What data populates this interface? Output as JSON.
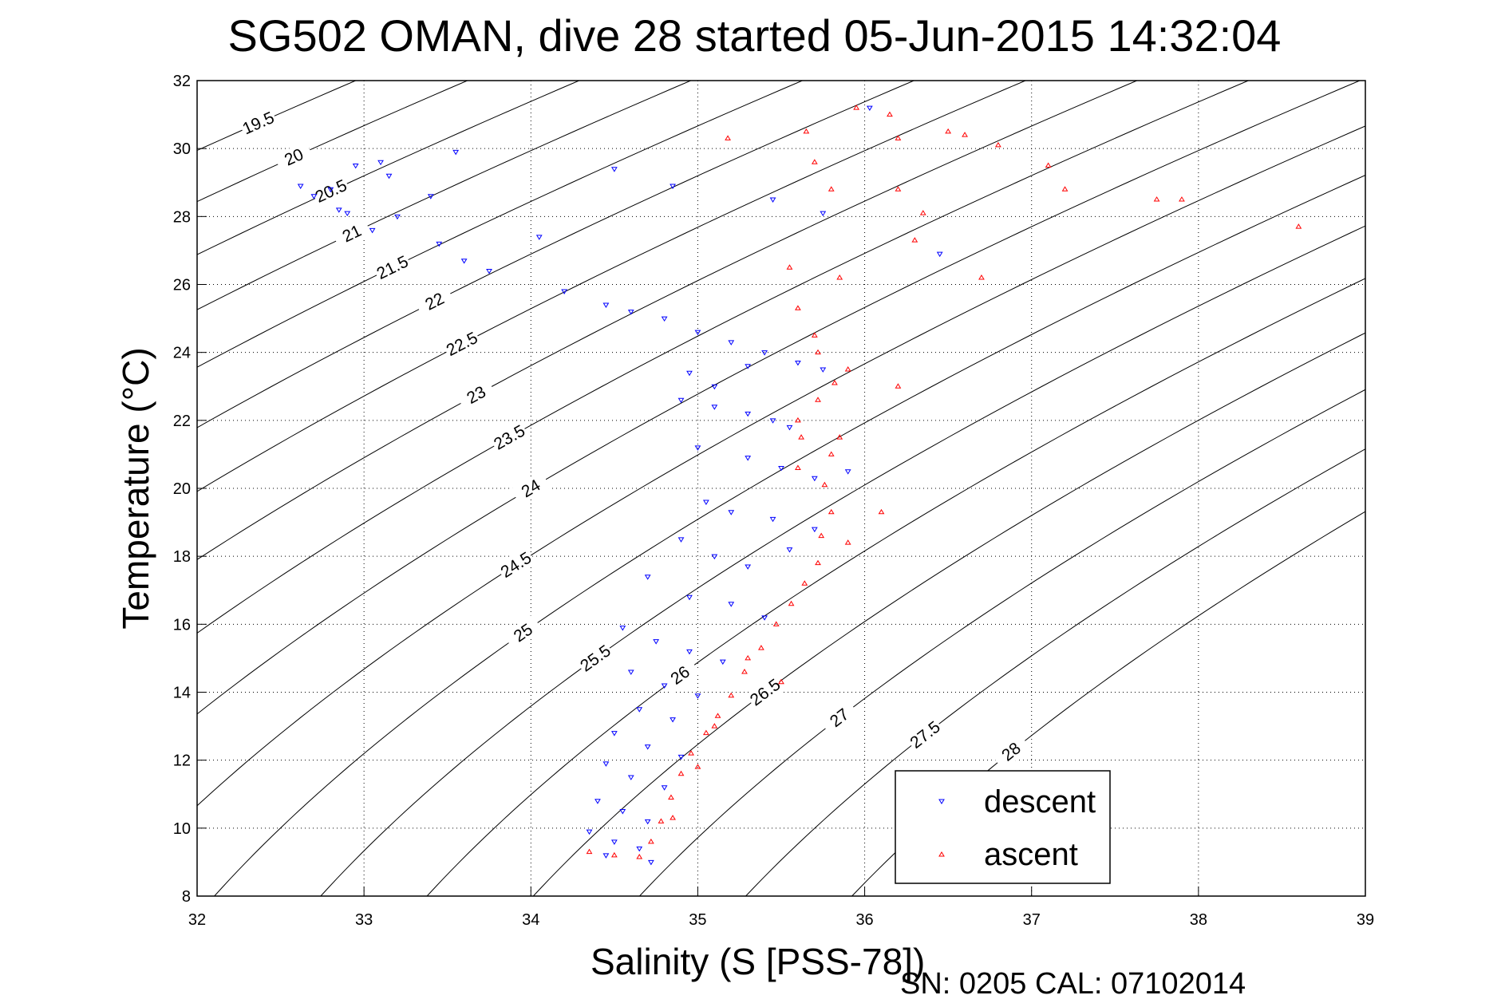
{
  "chart_data": {
    "type": "scatter",
    "title": "SG502 OMAN, dive 28 started 05-Jun-2015 14:32:04",
    "xlabel": "Salinity (S [PSS-78])",
    "ylabel": "Temperature (°C)",
    "footer": "SN: 0205  CAL: 07102014",
    "xlim": [
      32,
      39
    ],
    "ylim": [
      8,
      32
    ],
    "xticks": [
      "32",
      "33",
      "34",
      "35",
      "36",
      "37",
      "38",
      "39"
    ],
    "yticks": [
      "8",
      "10",
      "12",
      "14",
      "16",
      "18",
      "20",
      "22",
      "24",
      "26",
      "28",
      "30",
      "32"
    ],
    "grid": true,
    "legend": {
      "placement": "bottom-right",
      "entries": [
        "descent",
        "ascent"
      ]
    },
    "density_contours": [
      "19.5",
      "20",
      "20.5",
      "21",
      "21.5",
      "22",
      "22.5",
      "23",
      "23.5",
      "24",
      "24.5",
      "25",
      "25.5",
      "26",
      "26.5",
      "27",
      "27.5",
      "28"
    ],
    "colors": {
      "descent": "#0000ff",
      "ascent": "#ff0000",
      "contour": "#000000"
    },
    "series": [
      {
        "name": "descent",
        "marker": "triangle-down",
        "points": [
          [
            32.62,
            28.9
          ],
          [
            32.7,
            28.6
          ],
          [
            32.8,
            28.8
          ],
          [
            32.85,
            28.2
          ],
          [
            32.9,
            28.1
          ],
          [
            32.95,
            29.5
          ],
          [
            33.1,
            29.6
          ],
          [
            33.15,
            29.2
          ],
          [
            33.05,
            27.6
          ],
          [
            33.2,
            28.0
          ],
          [
            33.4,
            28.6
          ],
          [
            33.45,
            27.2
          ],
          [
            33.55,
            29.9
          ],
          [
            33.6,
            26.7
          ],
          [
            33.75,
            26.4
          ],
          [
            34.05,
            27.4
          ],
          [
            34.2,
            25.8
          ],
          [
            34.5,
            29.4
          ],
          [
            34.85,
            28.9
          ],
          [
            35.45,
            28.5
          ],
          [
            35.75,
            28.1
          ],
          [
            36.03,
            31.2
          ],
          [
            36.45,
            26.9
          ],
          [
            34.45,
            25.4
          ],
          [
            34.6,
            25.2
          ],
          [
            34.8,
            25.0
          ],
          [
            35.0,
            24.6
          ],
          [
            35.2,
            24.3
          ],
          [
            35.4,
            24.0
          ],
          [
            35.6,
            23.7
          ],
          [
            35.75,
            23.5
          ],
          [
            34.95,
            23.4
          ],
          [
            35.1,
            23.0
          ],
          [
            35.3,
            23.6
          ],
          [
            34.9,
            22.6
          ],
          [
            35.1,
            22.4
          ],
          [
            35.3,
            22.2
          ],
          [
            35.45,
            22.0
          ],
          [
            35.55,
            21.8
          ],
          [
            35.0,
            21.2
          ],
          [
            35.3,
            20.9
          ],
          [
            35.5,
            20.6
          ],
          [
            35.7,
            20.3
          ],
          [
            35.9,
            20.5
          ],
          [
            35.05,
            19.6
          ],
          [
            35.2,
            19.3
          ],
          [
            35.45,
            19.1
          ],
          [
            35.7,
            18.8
          ],
          [
            34.9,
            18.5
          ],
          [
            35.1,
            18.0
          ],
          [
            35.3,
            17.7
          ],
          [
            35.55,
            18.2
          ],
          [
            34.7,
            17.4
          ],
          [
            34.95,
            16.8
          ],
          [
            35.2,
            16.6
          ],
          [
            35.4,
            16.2
          ],
          [
            34.55,
            15.9
          ],
          [
            34.75,
            15.5
          ],
          [
            34.95,
            15.2
          ],
          [
            35.15,
            14.9
          ],
          [
            34.6,
            14.6
          ],
          [
            34.8,
            14.2
          ],
          [
            35.0,
            13.9
          ],
          [
            34.65,
            13.5
          ],
          [
            34.85,
            13.2
          ],
          [
            34.5,
            12.8
          ],
          [
            34.7,
            12.4
          ],
          [
            34.9,
            12.1
          ],
          [
            34.45,
            11.9
          ],
          [
            34.6,
            11.5
          ],
          [
            34.8,
            11.2
          ],
          [
            34.4,
            10.8
          ],
          [
            34.55,
            10.5
          ],
          [
            34.7,
            10.2
          ],
          [
            34.35,
            9.9
          ],
          [
            34.5,
            9.6
          ],
          [
            34.65,
            9.4
          ],
          [
            34.45,
            9.2
          ],
          [
            34.72,
            9.0
          ]
        ]
      },
      {
        "name": "ascent",
        "marker": "triangle-up",
        "points": [
          [
            34.35,
            9.3
          ],
          [
            34.5,
            9.2
          ],
          [
            34.65,
            9.15
          ],
          [
            34.72,
            9.6
          ],
          [
            34.78,
            10.2
          ],
          [
            34.84,
            10.9
          ],
          [
            34.9,
            11.6
          ],
          [
            34.96,
            12.2
          ],
          [
            35.05,
            12.8
          ],
          [
            35.12,
            13.3
          ],
          [
            35.2,
            13.9
          ],
          [
            35.28,
            14.6
          ],
          [
            35.38,
            15.3
          ],
          [
            35.47,
            16.0
          ],
          [
            35.56,
            16.6
          ],
          [
            35.64,
            17.2
          ],
          [
            35.72,
            17.8
          ],
          [
            35.74,
            18.6
          ],
          [
            35.8,
            19.3
          ],
          [
            35.76,
            20.1
          ],
          [
            35.6,
            20.6
          ],
          [
            35.8,
            21.0
          ],
          [
            35.62,
            21.5
          ],
          [
            35.85,
            21.5
          ],
          [
            35.6,
            22.0
          ],
          [
            35.72,
            22.6
          ],
          [
            35.82,
            23.1
          ],
          [
            35.9,
            23.5
          ],
          [
            35.72,
            24.0
          ],
          [
            35.7,
            24.5
          ],
          [
            35.6,
            25.3
          ],
          [
            35.55,
            26.5
          ],
          [
            35.1,
            13.0
          ],
          [
            35.0,
            11.8
          ],
          [
            34.85,
            10.3
          ],
          [
            35.3,
            15.0
          ],
          [
            35.5,
            14.3
          ],
          [
            35.9,
            18.4
          ],
          [
            36.1,
            19.3
          ],
          [
            36.2,
            23.0
          ],
          [
            35.85,
            26.2
          ],
          [
            36.3,
            27.3
          ],
          [
            36.7,
            26.2
          ],
          [
            35.18,
            30.3
          ],
          [
            35.65,
            30.5
          ],
          [
            35.7,
            29.6
          ],
          [
            35.8,
            28.8
          ],
          [
            36.2,
            28.8
          ],
          [
            36.35,
            28.1
          ],
          [
            36.2,
            30.3
          ],
          [
            36.5,
            30.5
          ],
          [
            36.6,
            30.4
          ],
          [
            36.8,
            30.1
          ],
          [
            37.1,
            29.5
          ],
          [
            37.2,
            28.8
          ],
          [
            37.75,
            28.5
          ],
          [
            37.9,
            28.5
          ],
          [
            38.6,
            27.7
          ],
          [
            35.95,
            31.2
          ],
          [
            36.15,
            31.0
          ]
        ]
      }
    ]
  }
}
